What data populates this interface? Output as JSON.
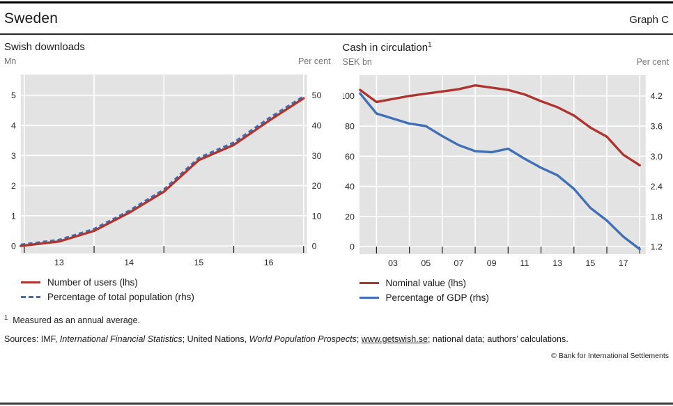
{
  "header": {
    "title": "Sweden",
    "graph_label": "Graph C"
  },
  "colors": {
    "plot_bg": "#e3e3e3",
    "gridline": "#ffffff",
    "red": "#ae352f",
    "blue": "#3f6fb7",
    "axis_text": "#262626",
    "unit_text": "#757575",
    "tick": "#222222"
  },
  "panels": [
    {
      "title": "Swish downloads",
      "left_unit": "Mn",
      "right_unit": "Per cent",
      "legend": [
        {
          "label": "Number of users (lhs)",
          "color": "#ae352f",
          "style": "solid"
        },
        {
          "label": "Percentage of total population (rhs)",
          "color": "#3f6fb7",
          "style": "dashed"
        }
      ]
    },
    {
      "title": "Cash in circulation",
      "title_sup": "1",
      "left_unit": "SEK bn",
      "right_unit": "Per cent",
      "legend": [
        {
          "label": "Nominal value (lhs)",
          "color": "#ae352f",
          "style": "solid"
        },
        {
          "label": "Percentage of GDP (rhs)",
          "color": "#3f6fb7",
          "style": "solid"
        }
      ]
    }
  ],
  "chart_data": [
    {
      "type": "line",
      "title": "Swish downloads",
      "x_domain": [
        2012.95,
        2017.05
      ],
      "x_tick_years": [
        2013,
        2014,
        2015,
        2016,
        2017
      ],
      "x_labels": [
        {
          "text": "13",
          "x": 2013.5
        },
        {
          "text": "14",
          "x": 2014.5
        },
        {
          "text": "15",
          "x": 2015.5
        },
        {
          "text": "16",
          "x": 2016.5
        }
      ],
      "left_axis": {
        "unit": "Mn",
        "range": [
          0,
          5
        ],
        "values": [
          0,
          1,
          2,
          3,
          4,
          5
        ],
        "labels": [
          "0",
          "1",
          "2",
          "3",
          "4",
          "5"
        ]
      },
      "right_axis": {
        "unit": "Per cent",
        "range": [
          0,
          50
        ],
        "values": [
          0,
          10,
          20,
          30,
          40,
          50
        ],
        "labels": [
          "0",
          "10",
          "20",
          "30",
          "40",
          "50"
        ]
      },
      "x": [
        2012.95,
        2013.5,
        2014.0,
        2014.5,
        2015.0,
        2015.5,
        2016.0,
        2016.5,
        2017.0
      ],
      "series": [
        {
          "name": "Percentage of total population (rhs)",
          "axis": "right",
          "color": "#3f6fb7",
          "dash": "6.5 4.2",
          "values": [
            0.4,
            2.0,
            5.6,
            11.6,
            18.7,
            29.2,
            34.3,
            42.3,
            49.6
          ]
        },
        {
          "name": "Number of users (lhs)",
          "axis": "left",
          "color": "#ae352f",
          "dash": null,
          "values": [
            0.0,
            0.15,
            0.5,
            1.1,
            1.8,
            2.85,
            3.35,
            4.15,
            4.9
          ]
        }
      ],
      "grid": true,
      "legend_position": "bottom"
    },
    {
      "type": "line",
      "title": "Cash in circulation",
      "x_domain": [
        2000.96,
        2018.36
      ],
      "x_tick_years": [
        2002,
        2004,
        2006,
        2008,
        2010,
        2012,
        2014,
        2016,
        2018
      ],
      "x_labels": [
        {
          "text": "03",
          "x": 2003
        },
        {
          "text": "05",
          "x": 2005
        },
        {
          "text": "07",
          "x": 2007
        },
        {
          "text": "09",
          "x": 2009
        },
        {
          "text": "11",
          "x": 2011
        },
        {
          "text": "13",
          "x": 2013
        },
        {
          "text": "15",
          "x": 2015
        },
        {
          "text": "17",
          "x": 2017
        }
      ],
      "left_axis": {
        "unit": "SEK bn",
        "range": [
          0,
          100
        ],
        "values": [
          0,
          20,
          40,
          60,
          80,
          100
        ],
        "labels": [
          "0",
          "20",
          "40",
          "60",
          "80",
          "100"
        ]
      },
      "right_axis": {
        "unit": "Per cent",
        "range": [
          1.2,
          4.2
        ],
        "values": [
          1.2,
          1.8,
          2.4,
          3.0,
          3.6,
          4.2
        ],
        "labels": [
          "1.2",
          "1.8",
          "2.4",
          "3.0",
          "3.6",
          "4.2"
        ]
      },
      "x": [
        2001,
        2002,
        2003,
        2004,
        2005,
        2006,
        2007,
        2008,
        2009,
        2010,
        2011,
        2012,
        2013,
        2014,
        2015,
        2016,
        2017,
        2018
      ],
      "series": [
        {
          "name": "Percentage of GDP (rhs)",
          "axis": "right",
          "color": "#3f6fb7",
          "dash": null,
          "values": [
            4.25,
            3.85,
            3.75,
            3.65,
            3.6,
            3.4,
            3.22,
            3.1,
            3.08,
            3.15,
            2.95,
            2.77,
            2.62,
            2.35,
            1.97,
            1.72,
            1.4,
            1.15
          ]
        },
        {
          "name": "Nominal value (lhs)",
          "axis": "left",
          "color": "#ae352f",
          "dash": null,
          "values": [
            104,
            96,
            98,
            100,
            101.5,
            103,
            104.5,
            107,
            105.5,
            104,
            101,
            96.5,
            92.5,
            87,
            79,
            73,
            61,
            54
          ]
        }
      ],
      "grid": true,
      "legend_position": "bottom"
    }
  ],
  "footnote": {
    "sup": "1",
    "text": "Measured as an annual average."
  },
  "sources": {
    "parts": [
      {
        "text": "Sources: IMF, ",
        "style": "normal"
      },
      {
        "text": "International Financial Statistics",
        "style": "italic"
      },
      {
        "text": "; United Nations, ",
        "style": "normal"
      },
      {
        "text": "World Population Prospects",
        "style": "italic"
      },
      {
        "text": "; ",
        "style": "normal"
      },
      {
        "text": "www.getswish.se",
        "style": "link"
      },
      {
        "text": "; national data; authors’ calculations.",
        "style": "normal"
      }
    ]
  },
  "copyright": "© Bank for International Settlements"
}
